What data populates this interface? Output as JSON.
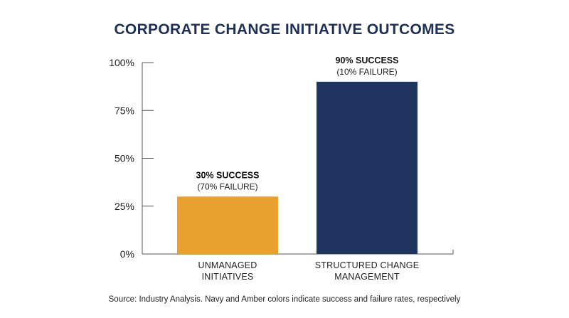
{
  "chart_data": {
    "type": "bar",
    "title": "CORPORATE CHANGE INITIATIVE OUTCOMES",
    "categories": [
      [
        "UNMANAGED",
        "INITIATIVES"
      ],
      [
        "STRUCTURED CHANGE",
        "MANAGEMENT"
      ]
    ],
    "values": [
      30,
      90
    ],
    "colors": [
      "#e8a12f",
      "#1f3560"
    ],
    "data_labels": [
      {
        "main": "30% SUCCESS",
        "sub": "(70% FAILURE)"
      },
      {
        "main": "90% SUCCESS",
        "sub": "(10% FAILURE)"
      }
    ],
    "ylim": [
      0,
      100
    ],
    "yticks": [
      0,
      25,
      50,
      75,
      100
    ],
    "ytick_labels": [
      "0%",
      "25%",
      "50%",
      "75%",
      "100%"
    ],
    "grid": false,
    "legend": "none",
    "source": "Source: Industry Analysis. Navy and Amber colors indicate success and failure rates, respectively"
  }
}
